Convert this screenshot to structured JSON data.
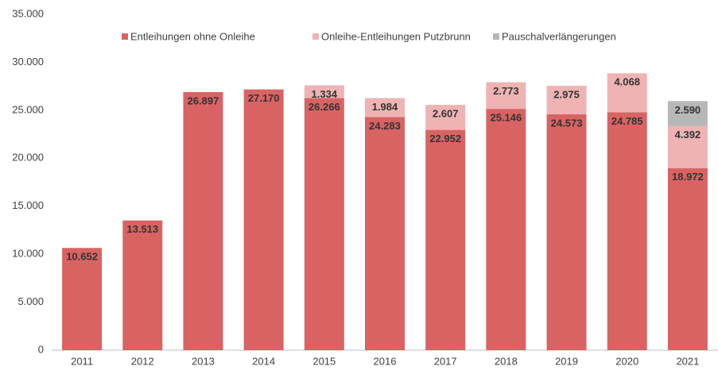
{
  "chart_data": {
    "type": "stacked_bar",
    "categories": [
      "2011",
      "2012",
      "2013",
      "2014",
      "2015",
      "2016",
      "2017",
      "2018",
      "2019",
      "2020",
      "2021"
    ],
    "series": [
      {
        "name": "Entleihungen ohne Onleihe",
        "color": "#d96363",
        "values": [
          10652,
          13513,
          26897,
          27170,
          26266,
          24283,
          22952,
          25146,
          24573,
          24785,
          18972
        ],
        "value_labels": [
          "10.652",
          "13.513",
          "26.897",
          "27.170",
          "26.266",
          "24.283",
          "22.952",
          "25.146",
          "24.573",
          "24.785",
          "18.972"
        ]
      },
      {
        "name": "Onleihe-Entleihungen Putzbrunn",
        "color": "#efb3b3",
        "values": [
          null,
          null,
          null,
          null,
          1334,
          1984,
          2607,
          2773,
          2975,
          4068,
          4392
        ],
        "value_labels": [
          null,
          null,
          null,
          null,
          "1.334",
          "1.984",
          "2.607",
          "2.773",
          "2.975",
          "4.068",
          "4.392"
        ]
      },
      {
        "name": "Pauschalverlängerungen",
        "color": "#b7b7b7",
        "values": [
          null,
          null,
          null,
          null,
          null,
          null,
          null,
          null,
          null,
          null,
          2590
        ],
        "value_labels": [
          null,
          null,
          null,
          null,
          null,
          null,
          null,
          null,
          null,
          null,
          "2.590"
        ]
      }
    ],
    "ylim": [
      0,
      35000
    ],
    "yticks": [
      0,
      {
        "value": 5000,
        "label": "5.000"
      },
      {
        "value": 10000,
        "label": "10.000"
      },
      {
        "value": 15000,
        "label": "15.000"
      },
      {
        "value": 20000,
        "label": "20.000"
      },
      {
        "value": 25000,
        "label": "25.000"
      },
      {
        "value": 30000,
        "label": "30.000"
      },
      {
        "value": 35000,
        "label": "35.000"
      }
    ],
    "legend": "top"
  }
}
